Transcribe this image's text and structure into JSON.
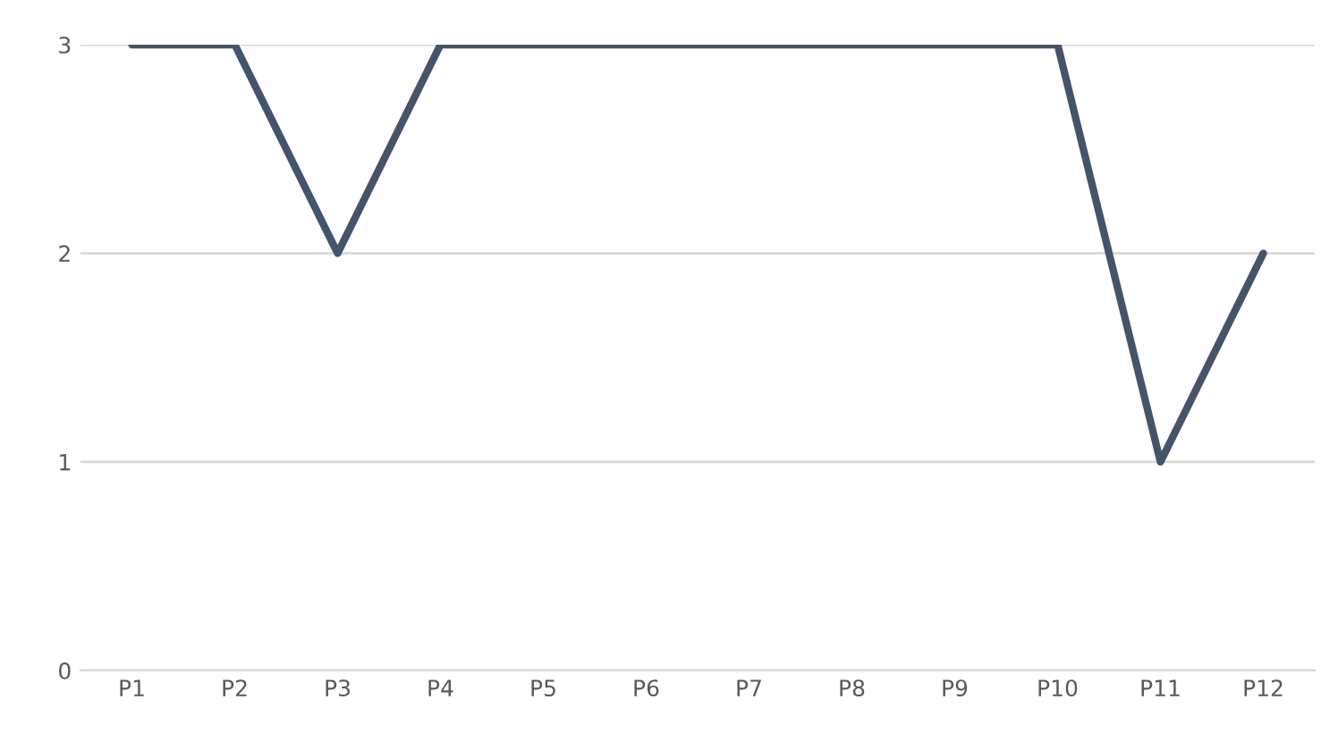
{
  "chart_data": {
    "type": "line",
    "categories": [
      "P1",
      "P2",
      "P3",
      "P4",
      "P5",
      "P6",
      "P7",
      "P8",
      "P9",
      "P10",
      "P11",
      "P12"
    ],
    "series": [
      {
        "color": "#44546a",
        "values": [
          3,
          3,
          2,
          3,
          3,
          3,
          3,
          3,
          3,
          3,
          1,
          2
        ]
      }
    ],
    "ylim": [
      0,
      3
    ],
    "yticks": [
      0,
      1,
      2,
      3
    ],
    "grid": "y",
    "line_style": "solid"
  }
}
